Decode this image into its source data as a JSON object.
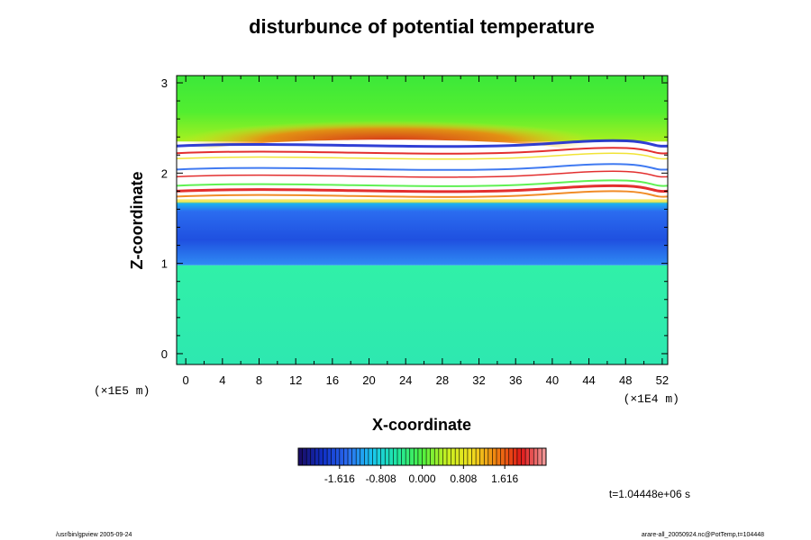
{
  "chart_data": {
    "type": "heatmap",
    "title": "disturbunce of potential temperature",
    "xlabel": "X-coordinate",
    "ylabel": "Z-coordinate",
    "x_unit_label": "(×1E4 m)",
    "y_unit_label": "(×1E5 m)",
    "x_ticks": [
      "0",
      "4",
      "8",
      "12",
      "16",
      "20",
      "24",
      "28",
      "32",
      "36",
      "40",
      "44",
      "48",
      "52"
    ],
    "y_ticks": [
      "0",
      "1",
      "2",
      "3"
    ],
    "xlim": [
      -1,
      52.6
    ],
    "ylim": [
      -0.12,
      3.08
    ],
    "colorbar": {
      "range": [
        -2.424,
        2.424
      ],
      "tick_labels": [
        "-1.616",
        "-0.808",
        "0.000",
        "0.808",
        "1.616"
      ],
      "colormap": [
        "#1a0a5e",
        "#1030c8",
        "#2b6cf0",
        "#19c8f0",
        "#1fe8a0",
        "#4ef040",
        "#c8f020",
        "#f0e020",
        "#f08010",
        "#e01818",
        "#f0a0a0"
      ]
    },
    "field_bands": [
      {
        "z_from": -0.12,
        "z_to": 0.98,
        "description_value": 0.15,
        "color": "#22f0a0"
      },
      {
        "z_from": 0.98,
        "z_to": 1.68,
        "description_value": -1.1,
        "color": "#2b78f0"
      },
      {
        "z_from": 1.68,
        "z_to": 2.35,
        "description_value": 2.4,
        "color": "#ffffff"
      },
      {
        "z_from": 2.35,
        "z_to": 3.08,
        "description_value": 0.5,
        "color": "#3ce83a"
      }
    ]
  },
  "footer": {
    "time_label": "t=1.04448e+06 s",
    "left_note": "/usr/bin/gpview 2005-09-24",
    "right_note": "arare-all_20050924.nc@PotTemp,t=104448"
  }
}
